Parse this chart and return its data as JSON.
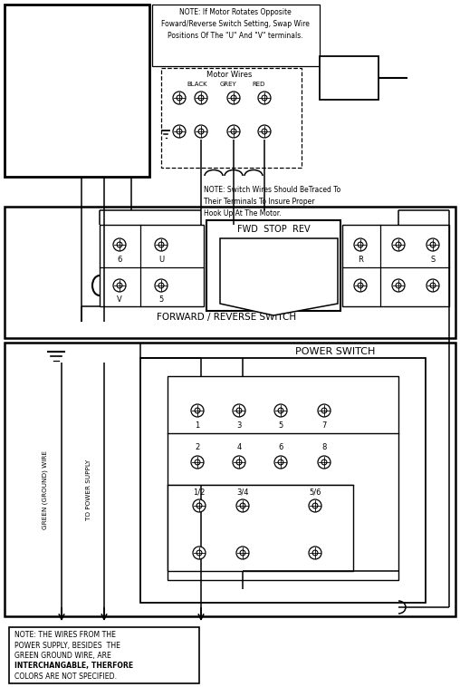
{
  "bg": "#ffffff",
  "lc": "#000000",
  "note1": "NOTE: If Motor Rotates Opposite\nFoward/Reverse Switch Setting, Swap Wire\nPositions Of The \"U\" And \"V\" terminals.",
  "note2": "NOTE: Switch Wires Should BeTraced To\nTheir Terminals To Insure Proper\nHook Up At The Motor.",
  "note3_lines": [
    "NOTE: THE WIRES FROM THE",
    "POWER SUPPLY, BESIDES  THE",
    "GREEN GROUND WIRE, ARE",
    "INTERCHANGABLE, THERFORE",
    "COLORS ARE NOT SPECIFIED."
  ],
  "motor_wires": "Motor Wires",
  "black": "BLACK",
  "grey": "GREY",
  "red_lbl": "RED",
  "fwd_stop_rev": "FWD  STOP  REV",
  "frs_label": "FORWARD / REVERSE SWITCH",
  "ps_label": "POWER SWITCH",
  "green_wire": "GREEN (GROUND) WIRE",
  "to_ps": "TO POWER SUPPLY"
}
